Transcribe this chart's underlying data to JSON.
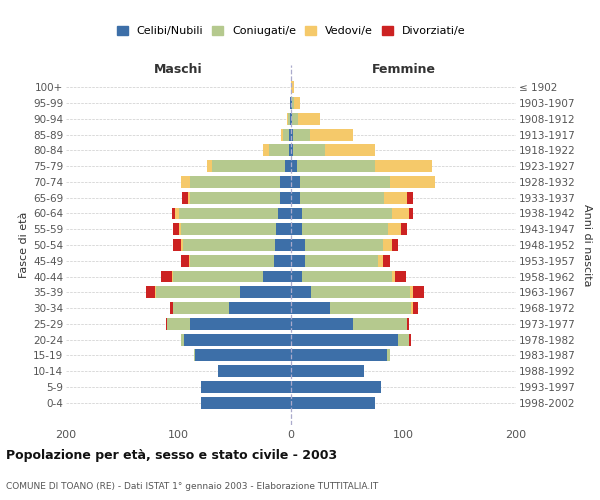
{
  "age_groups": [
    "0-4",
    "5-9",
    "10-14",
    "15-19",
    "20-24",
    "25-29",
    "30-34",
    "35-39",
    "40-44",
    "45-49",
    "50-54",
    "55-59",
    "60-64",
    "65-69",
    "70-74",
    "75-79",
    "80-84",
    "85-89",
    "90-94",
    "95-99",
    "100+"
  ],
  "birth_years": [
    "1998-2002",
    "1993-1997",
    "1988-1992",
    "1983-1987",
    "1978-1982",
    "1973-1977",
    "1968-1972",
    "1963-1967",
    "1958-1962",
    "1953-1957",
    "1948-1952",
    "1943-1947",
    "1938-1942",
    "1933-1937",
    "1928-1932",
    "1923-1927",
    "1918-1922",
    "1913-1917",
    "1908-1912",
    "1903-1907",
    "≤ 1902"
  ],
  "colors": {
    "celibi": "#3d6fa8",
    "coniugati": "#b5c98e",
    "vedovi": "#f5c96a",
    "divorziati": "#cc2222"
  },
  "maschi": {
    "celibi": [
      80,
      80,
      65,
      85,
      95,
      90,
      55,
      45,
      25,
      15,
      14,
      13,
      12,
      10,
      10,
      5,
      2,
      2,
      1,
      1,
      0
    ],
    "coniugati": [
      0,
      0,
      0,
      1,
      3,
      20,
      50,
      75,
      80,
      75,
      82,
      85,
      88,
      80,
      80,
      65,
      18,
      5,
      2,
      0,
      0
    ],
    "vedovi": [
      0,
      0,
      0,
      0,
      0,
      0,
      0,
      1,
      1,
      1,
      2,
      2,
      3,
      2,
      8,
      5,
      5,
      2,
      1,
      0,
      0
    ],
    "divorziati": [
      0,
      0,
      0,
      0,
      0,
      1,
      3,
      8,
      10,
      7,
      7,
      5,
      3,
      5,
      0,
      0,
      0,
      0,
      0,
      0,
      0
    ]
  },
  "femmine": {
    "nubili": [
      75,
      80,
      65,
      85,
      95,
      55,
      35,
      18,
      10,
      12,
      12,
      10,
      10,
      8,
      8,
      5,
      2,
      2,
      1,
      1,
      0
    ],
    "coniugate": [
      0,
      0,
      0,
      3,
      10,
      48,
      72,
      88,
      80,
      65,
      70,
      76,
      80,
      75,
      80,
      70,
      28,
      15,
      5,
      2,
      0
    ],
    "vedove": [
      0,
      0,
      0,
      0,
      0,
      0,
      1,
      2,
      2,
      5,
      8,
      12,
      15,
      20,
      40,
      50,
      45,
      38,
      20,
      5,
      3
    ],
    "divorziate": [
      0,
      0,
      0,
      0,
      2,
      2,
      5,
      10,
      10,
      6,
      5,
      5,
      3,
      5,
      0,
      0,
      0,
      0,
      0,
      0,
      0
    ]
  },
  "title": "Popolazione per età, sesso e stato civile - 2003",
  "subtitle": "COMUNE DI TOANO (RE) - Dati ISTAT 1° gennaio 2003 - Elaborazione TUTTITALIA.IT",
  "label_maschi": "Maschi",
  "label_femmine": "Femmine",
  "ylabel_left": "Fasce di età",
  "ylabel_right": "Anni di nascita",
  "xlim": 200,
  "legend_labels": [
    "Celibi/Nubili",
    "Coniugati/e",
    "Vedovi/e",
    "Divorziati/e"
  ],
  "background_color": "#ffffff",
  "grid_color": "#cccccc"
}
